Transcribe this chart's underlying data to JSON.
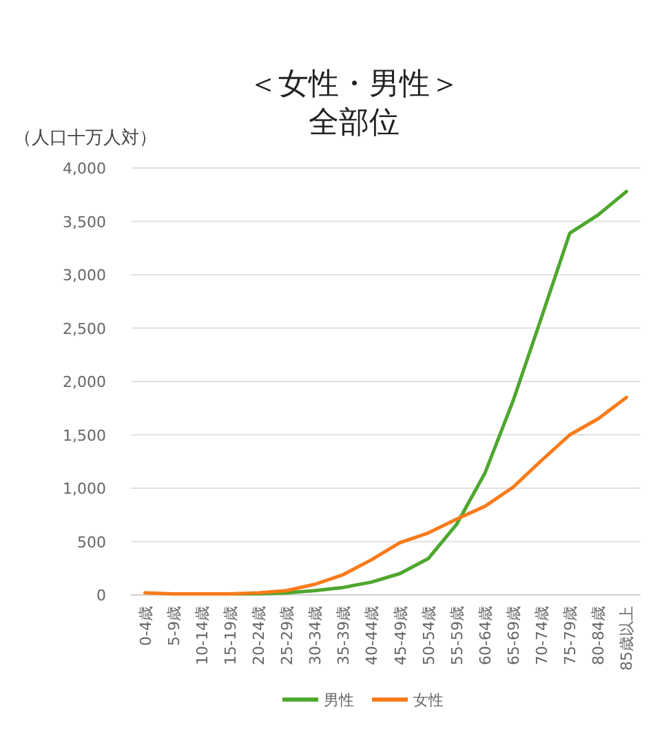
{
  "chart_data": {
    "type": "line",
    "title": "＜女性・男性＞",
    "subtitle": "全部位",
    "ylabel": "（人口十万人対）",
    "categories": [
      "0-4歳",
      "5-9歳",
      "10-14歳",
      "15-19歳",
      "20-24歳",
      "25-29歳",
      "30-34歳",
      "35-39歳",
      "40-44歳",
      "45-49歳",
      "50-54歳",
      "55-59歳",
      "60-64歳",
      "65-69歳",
      "70-74歳",
      "75-79歳",
      "80-84歳",
      "85歳以上"
    ],
    "series": [
      {
        "name": "男性",
        "color": "#4ea72e",
        "values": [
          null,
          null,
          10,
          10,
          10,
          20,
          40,
          70,
          120,
          200,
          340,
          660,
          1140,
          1820,
          2600,
          3390,
          3560,
          3780
        ]
      },
      {
        "name": "女性",
        "color": "#f97b1a",
        "values": [
          20,
          10,
          10,
          10,
          20,
          40,
          100,
          190,
          330,
          490,
          580,
          710,
          830,
          1010,
          1260,
          1500,
          1650,
          1850
        ]
      }
    ],
    "ylim": [
      0,
      4000
    ],
    "yticks": [
      {
        "value": 0,
        "label": "0"
      },
      {
        "value": 500,
        "label": "500"
      },
      {
        "value": 1000,
        "label": "1,000"
      },
      {
        "value": 1500,
        "label": "1,500"
      },
      {
        "value": 2000,
        "label": "2,000"
      },
      {
        "value": 2500,
        "label": "2,500"
      },
      {
        "value": 3000,
        "label": "3,000"
      },
      {
        "value": 3500,
        "label": "3,500"
      },
      {
        "value": 4000,
        "label": "4,000"
      }
    ],
    "grid": "y",
    "legend": "bottom",
    "marker": "none",
    "line_style": "solid"
  }
}
